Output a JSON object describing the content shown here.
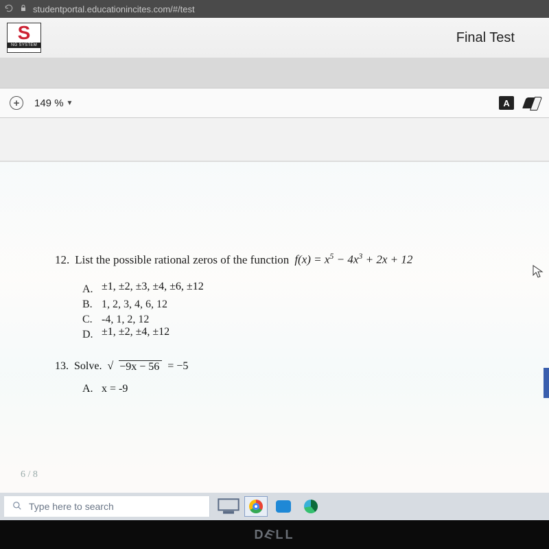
{
  "browser": {
    "url": "studentportal.educationincites.com/#/test"
  },
  "header": {
    "logo_letter": "S",
    "logo_tag": "NG SYSTEM",
    "title": "Final Test"
  },
  "toolbar": {
    "zoom_level": "149 %"
  },
  "question12": {
    "number": "12.",
    "prompt": "List the possible rational zeros of the function",
    "function_html": "f(x) = x<sup>5</sup> − 4x<sup>3</sup> + 2x + 12",
    "options": {
      "A": {
        "letter": "A.",
        "value": "±1, ±2, ±3, ±4, ±6, ±12"
      },
      "B": {
        "letter": "B.",
        "value": "1, 2, 3, 4, 6, 12"
      },
      "C": {
        "letter": "C.",
        "value": "-4, 1, 2, 12"
      },
      "D": {
        "letter": "D.",
        "value": "±1, ±2, ±4, ±12"
      }
    }
  },
  "question13": {
    "number": "13.",
    "prompt": "Solve.",
    "radicand": "−9x − 56",
    "rhs": " = −5",
    "optionA": {
      "letter": "A.",
      "value": "x = -9"
    }
  },
  "pager": "6 / 8",
  "taskbar": {
    "search_placeholder": "Type here to search"
  },
  "bezel": {
    "brand": "DELL"
  }
}
